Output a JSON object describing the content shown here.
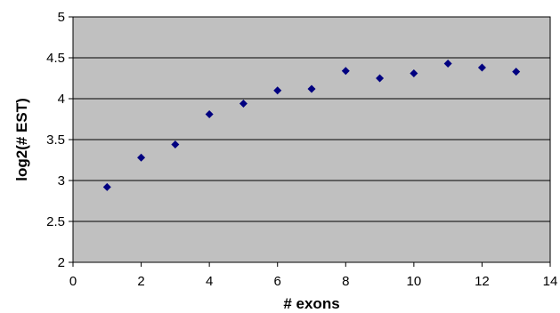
{
  "chart_data": {
    "type": "scatter",
    "title": "",
    "xlabel": "# exons",
    "ylabel": "log2(# EST)",
    "xlim": [
      0,
      14
    ],
    "ylim": [
      2,
      5
    ],
    "x_ticks": [
      0,
      2,
      4,
      6,
      8,
      10,
      12,
      14
    ],
    "y_ticks": [
      2,
      2.5,
      3,
      3.5,
      4,
      4.5,
      5
    ],
    "x_tick_labels": [
      "0",
      "2",
      "4",
      "6",
      "8",
      "10",
      "12",
      "14"
    ],
    "y_tick_labels": [
      "2",
      "2.5",
      "3",
      "3.5",
      "4",
      "4.5",
      "5"
    ],
    "grid": "horizontal",
    "legend": "none",
    "colors": {
      "plot_background": "#c0c0c0",
      "grid": "#000000",
      "marker": "#000080"
    },
    "series": [
      {
        "marker": "diamond",
        "points": [
          {
            "x": 1,
            "y": 2.92
          },
          {
            "x": 2,
            "y": 3.28
          },
          {
            "x": 3,
            "y": 3.44
          },
          {
            "x": 4,
            "y": 3.81
          },
          {
            "x": 5,
            "y": 3.94
          },
          {
            "x": 6,
            "y": 4.1
          },
          {
            "x": 7,
            "y": 4.12
          },
          {
            "x": 8,
            "y": 4.34
          },
          {
            "x": 9,
            "y": 4.25
          },
          {
            "x": 10,
            "y": 4.31
          },
          {
            "x": 11,
            "y": 4.43
          },
          {
            "x": 12,
            "y": 4.38
          },
          {
            "x": 13,
            "y": 4.33
          }
        ]
      }
    ]
  }
}
